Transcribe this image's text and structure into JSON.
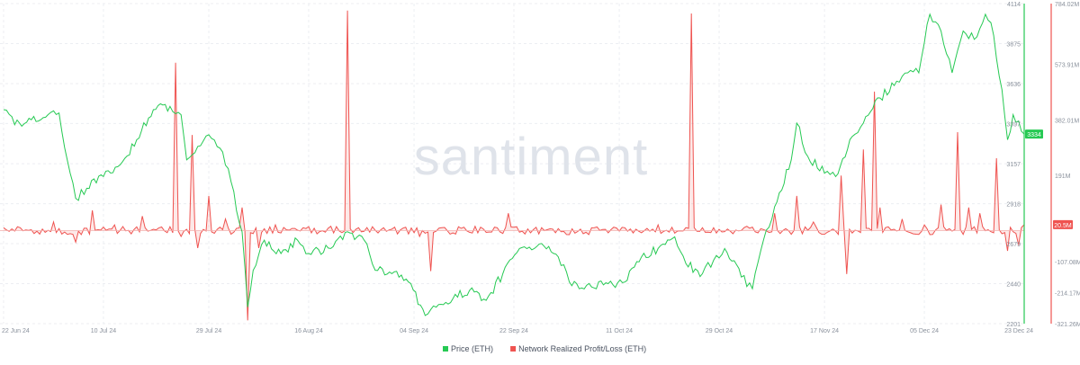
{
  "watermark": "santiment",
  "legend": [
    {
      "label": "Price (ETH)",
      "color": "#26c953"
    },
    {
      "label": "Network Realized Profit/Loss (ETH)",
      "color": "#ef5350"
    }
  ],
  "chart_data": {
    "type": "line",
    "x_ticks": [
      "22 Jun 24",
      "10 Jul 24",
      "29 Jul 24",
      "16 Aug 24",
      "04 Sep 24",
      "22 Sep 24",
      "11 Oct 24",
      "29 Oct 24",
      "17 Nov 24",
      "05 Dec 24",
      "23 Dec 24"
    ],
    "x_range": [
      "22 Jun 24",
      "23 Dec 24"
    ],
    "price_axis": {
      "ticks": [
        "4114",
        "3875",
        "3636",
        "3397",
        "3157",
        "2918",
        "2679",
        "2440",
        "2201"
      ],
      "ylim": [
        2201,
        4114
      ],
      "current_label": "3334",
      "color": "#26c953"
    },
    "pnl_axis": {
      "ticks": [
        "784.02M",
        "573.91M",
        "382.01M",
        "191M",
        "-107.08M",
        "-214.17M",
        "-321.26M"
      ],
      "ylim": [
        -321.26,
        784.02
      ],
      "unit": "M",
      "current_label": "20.5M",
      "color": "#ef5350"
    },
    "series": [
      {
        "name": "Price (ETH)",
        "axis": "price",
        "color": "#26c953",
        "points": [
          [
            "22 Jun 24",
            3480
          ],
          [
            "24 Jun 24",
            3390
          ],
          [
            "27 Jun 24",
            3420
          ],
          [
            "30 Jun 24",
            3450
          ],
          [
            "02 Jul 24",
            3460
          ],
          [
            "04 Jul 24",
            3100
          ],
          [
            "05 Jul 24",
            2950
          ],
          [
            "07 Jul 24",
            3010
          ],
          [
            "10 Jul 24",
            3080
          ],
          [
            "13 Jul 24",
            3150
          ],
          [
            "16 Jul 24",
            3300
          ],
          [
            "19 Jul 24",
            3480
          ],
          [
            "22 Jul 24",
            3500
          ],
          [
            "24 Jul 24",
            3450
          ],
          [
            "25 Jul 24",
            3180
          ],
          [
            "27 Jul 24",
            3260
          ],
          [
            "29 Jul 24",
            3330
          ],
          [
            "31 Jul 24",
            3250
          ],
          [
            "02 Aug 24",
            3050
          ],
          [
            "04 Aug 24",
            2750
          ],
          [
            "05 Aug 24",
            2300
          ],
          [
            "06 Aug 24",
            2520
          ],
          [
            "08 Aug 24",
            2700
          ],
          [
            "11 Aug 24",
            2620
          ],
          [
            "14 Aug 24",
            2700
          ],
          [
            "16 Aug 24",
            2620
          ],
          [
            "20 Aug 24",
            2650
          ],
          [
            "23 Aug 24",
            2750
          ],
          [
            "26 Aug 24",
            2700
          ],
          [
            "28 Aug 24",
            2520
          ],
          [
            "31 Aug 24",
            2500
          ],
          [
            "03 Sep 24",
            2450
          ],
          [
            "06 Sep 24",
            2250
          ],
          [
            "08 Sep 24",
            2300
          ],
          [
            "11 Sep 24",
            2350
          ],
          [
            "14 Sep 24",
            2400
          ],
          [
            "17 Sep 24",
            2340
          ],
          [
            "20 Sep 24",
            2500
          ],
          [
            "23 Sep 24",
            2650
          ],
          [
            "27 Sep 24",
            2680
          ],
          [
            "30 Sep 24",
            2600
          ],
          [
            "02 Oct 24",
            2450
          ],
          [
            "06 Oct 24",
            2420
          ],
          [
            "09 Oct 24",
            2440
          ],
          [
            "12 Oct 24",
            2450
          ],
          [
            "15 Oct 24",
            2600
          ],
          [
            "18 Oct 24",
            2650
          ],
          [
            "21 Oct 24",
            2720
          ],
          [
            "23 Oct 24",
            2560
          ],
          [
            "26 Oct 24",
            2500
          ],
          [
            "28 Oct 24",
            2580
          ],
          [
            "30 Oct 24",
            2650
          ],
          [
            "02 Nov 24",
            2480
          ],
          [
            "04 Nov 24",
            2410
          ],
          [
            "06 Nov 24",
            2700
          ],
          [
            "08 Nov 24",
            2900
          ],
          [
            "11 Nov 24",
            3180
          ],
          [
            "12 Nov 24",
            3400
          ],
          [
            "14 Nov 24",
            3200
          ],
          [
            "17 Nov 24",
            3100
          ],
          [
            "19 Nov 24",
            3080
          ],
          [
            "22 Nov 24",
            3320
          ],
          [
            "24 Nov 24",
            3400
          ],
          [
            "27 Nov 24",
            3550
          ],
          [
            "30 Nov 24",
            3650
          ],
          [
            "02 Dec 24",
            3700
          ],
          [
            "04 Dec 24",
            3700
          ],
          [
            "06 Dec 24",
            4050
          ],
          [
            "08 Dec 24",
            3950
          ],
          [
            "10 Dec 24",
            3700
          ],
          [
            "12 Dec 24",
            3950
          ],
          [
            "14 Dec 24",
            3900
          ],
          [
            "16 Dec 24",
            4050
          ],
          [
            "17 Dec 24",
            4000
          ],
          [
            "19 Dec 24",
            3600
          ],
          [
            "20 Dec 24",
            3300
          ],
          [
            "21 Dec 24",
            3450
          ],
          [
            "23 Dec 24",
            3334
          ]
        ]
      },
      {
        "name": "Network Realized Profit/Loss (ETH)",
        "axis": "pnl",
        "color": "#ef5350",
        "baseline_m": 0,
        "points": [
          [
            "22 Jun 24",
            10
          ],
          [
            "01 Jul 24",
            30
          ],
          [
            "05 Jul 24",
            -40
          ],
          [
            "08 Jul 24",
            70
          ],
          [
            "12 Jul 24",
            20
          ],
          [
            "17 Jul 24",
            50
          ],
          [
            "23 Jul 24",
            580
          ],
          [
            "24 Jul 24",
            -20
          ],
          [
            "26 Jul 24",
            330
          ],
          [
            "27 Jul 24",
            -60
          ],
          [
            "29 Jul 24",
            120
          ],
          [
            "01 Aug 24",
            40
          ],
          [
            "04 Aug 24",
            80
          ],
          [
            "05 Aug 24",
            -310
          ],
          [
            "07 Aug 24",
            -60
          ],
          [
            "10 Aug 24",
            20
          ],
          [
            "15 Aug 24",
            10
          ],
          [
            "20 Aug 24",
            15
          ],
          [
            "23 Aug 24",
            760
          ],
          [
            "25 Aug 24",
            10
          ],
          [
            "31 Aug 24",
            5
          ],
          [
            "05 Sep 24",
            -20
          ],
          [
            "07 Sep 24",
            -140
          ],
          [
            "09 Sep 24",
            10
          ],
          [
            "15 Sep 24",
            15
          ],
          [
            "19 Sep 24",
            10
          ],
          [
            "21 Sep 24",
            60
          ],
          [
            "27 Sep 24",
            10
          ],
          [
            "04 Oct 24",
            5
          ],
          [
            "12 Oct 24",
            10
          ],
          [
            "18 Oct 24",
            20
          ],
          [
            "24 Oct 24",
            750
          ],
          [
            "26 Oct 24",
            10
          ],
          [
            "03 Nov 24",
            15
          ],
          [
            "08 Nov 24",
            60
          ],
          [
            "12 Nov 24",
            120
          ],
          [
            "15 Nov 24",
            30
          ],
          [
            "20 Nov 24",
            190
          ],
          [
            "21 Nov 24",
            -150
          ],
          [
            "24 Nov 24",
            280
          ],
          [
            "26 Nov 24",
            480
          ],
          [
            "27 Nov 24",
            80
          ],
          [
            "01 Dec 24",
            40
          ],
          [
            "05 Dec 24",
            20
          ],
          [
            "08 Dec 24",
            90
          ],
          [
            "11 Dec 24",
            340
          ],
          [
            "13 Dec 24",
            80
          ],
          [
            "15 Dec 24",
            60
          ],
          [
            "18 Dec 24",
            250
          ],
          [
            "20 Dec 24",
            -70
          ],
          [
            "22 Dec 24",
            -50
          ],
          [
            "23 Dec 24",
            20.5
          ]
        ]
      }
    ],
    "grid": true,
    "legend_position": "bottom-center"
  }
}
